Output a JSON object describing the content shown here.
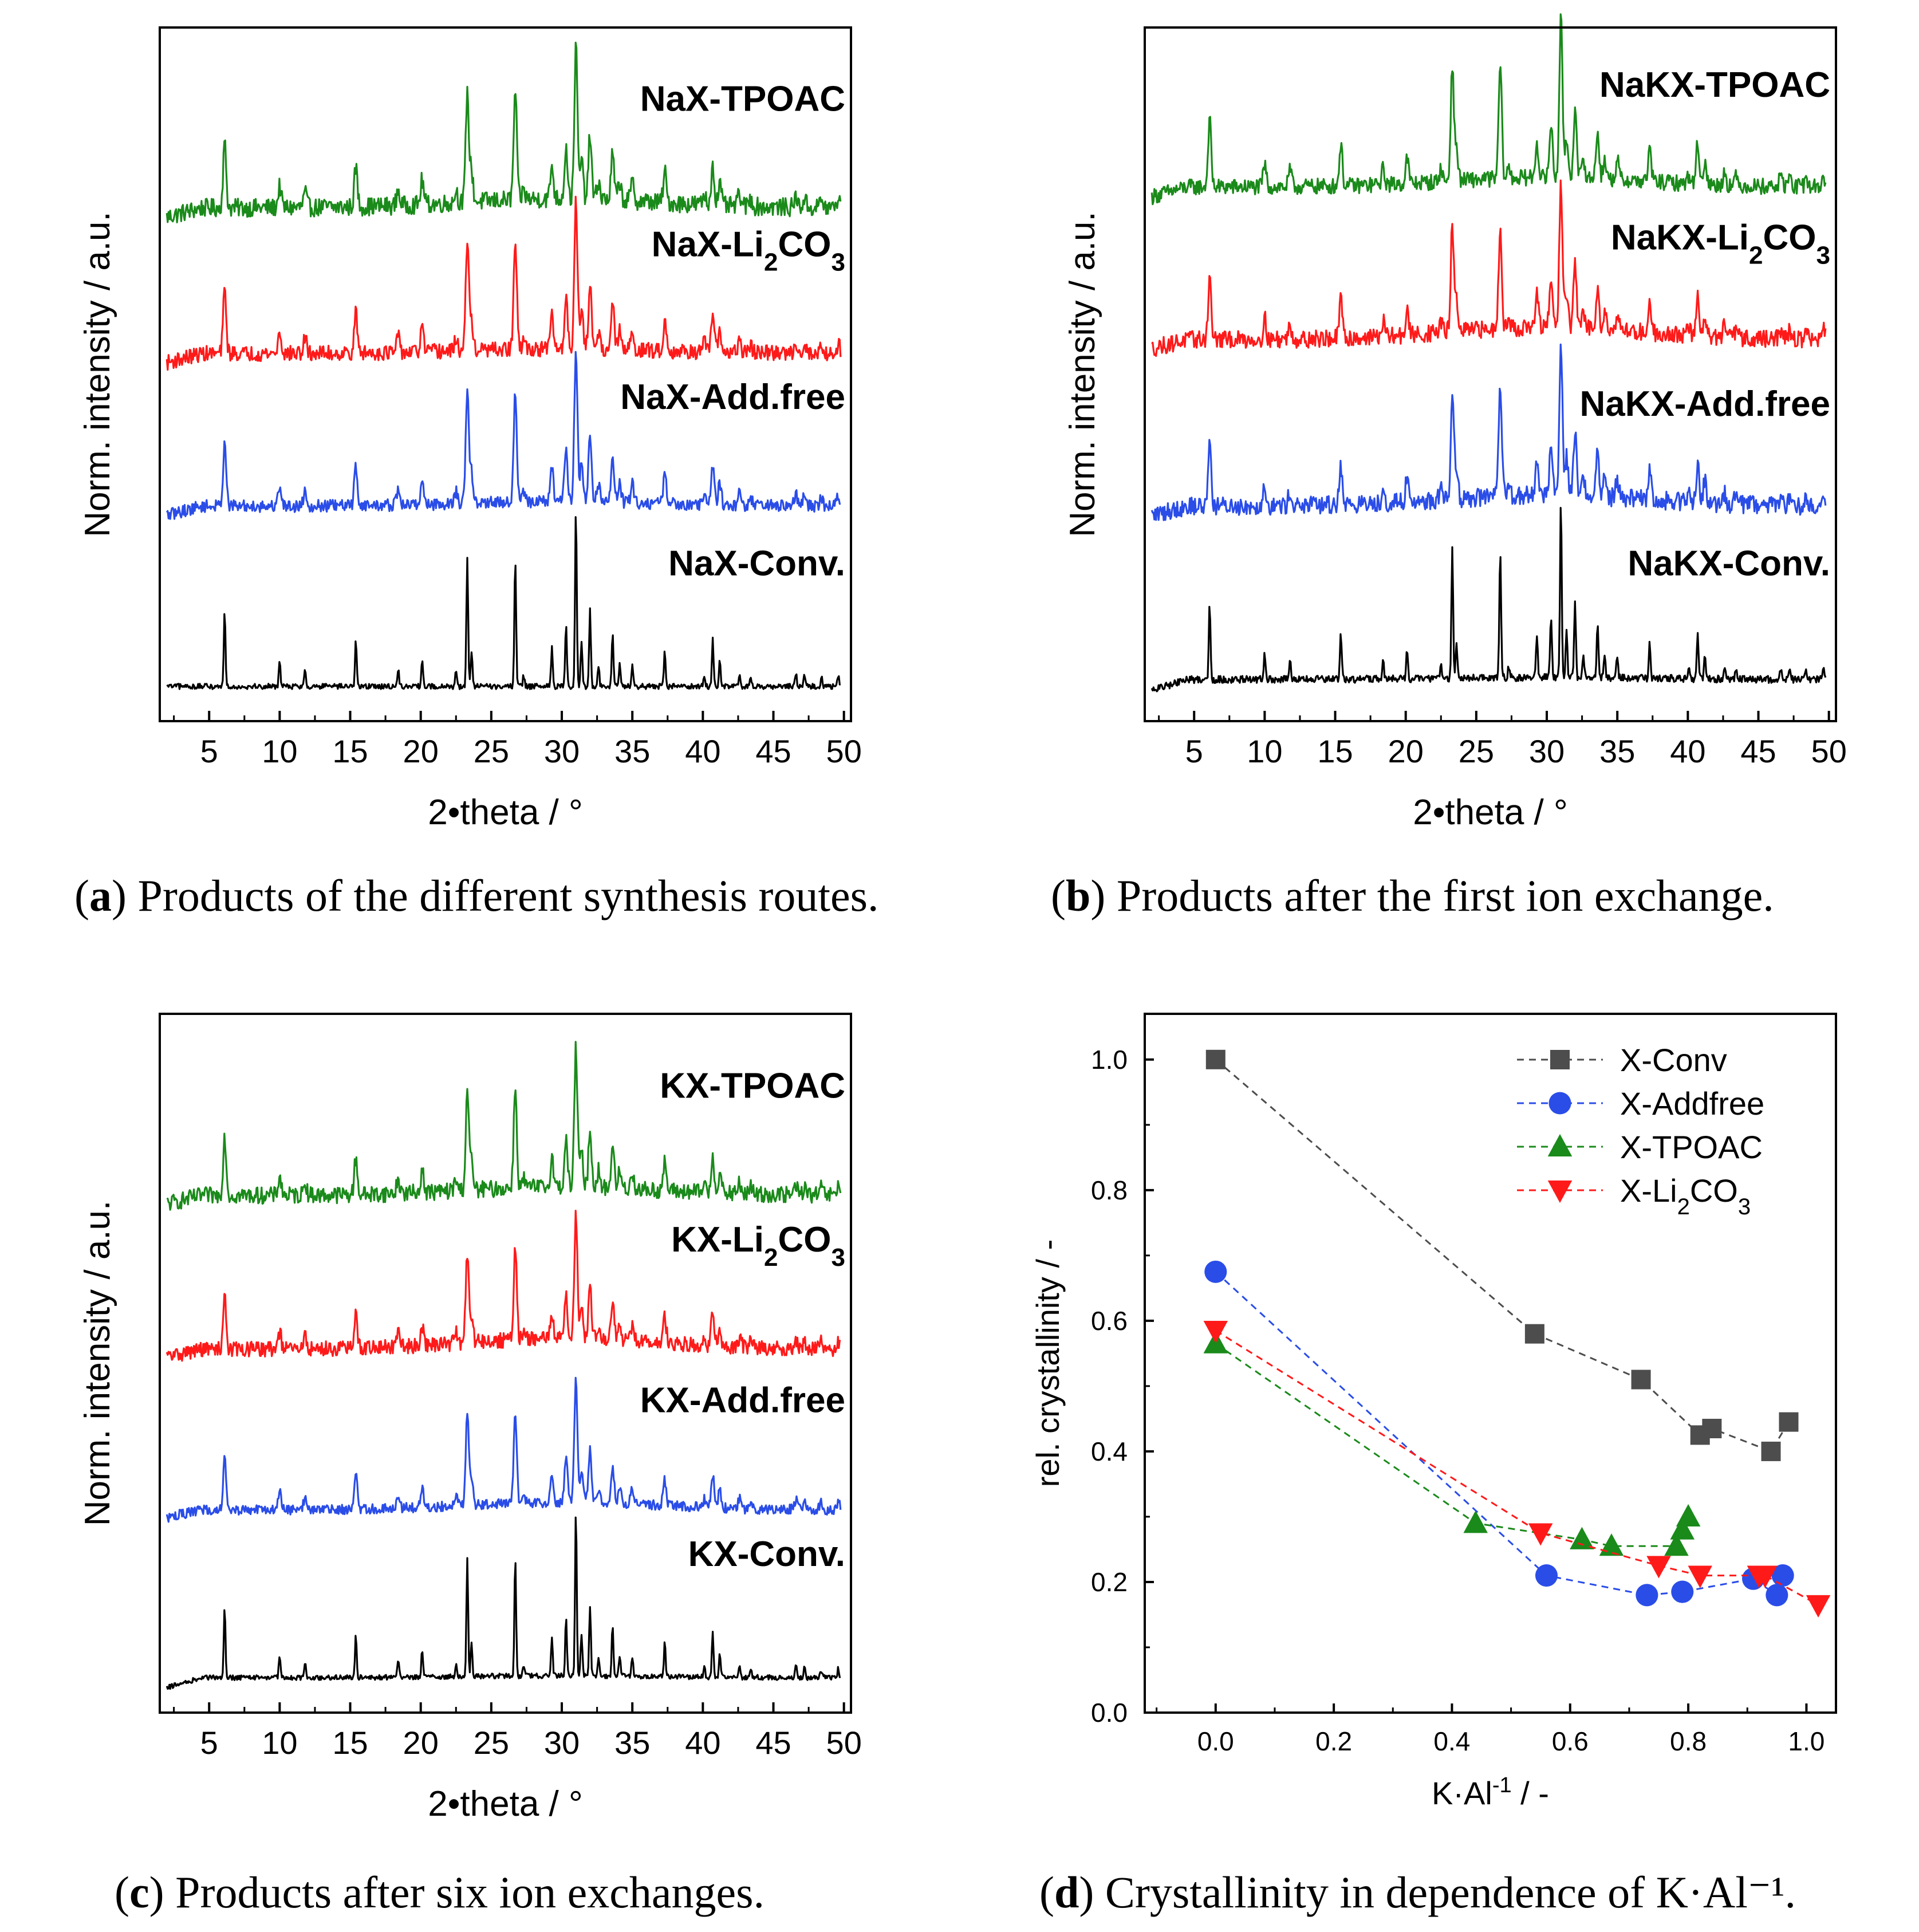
{
  "figure": {
    "captions": [
      {
        "letter": "a",
        "text": "Products of the different synthesis routes."
      },
      {
        "letter": "b",
        "text": "Products after the first ion exchange."
      },
      {
        "letter": "c",
        "text": "Products after six ion exchanges."
      },
      {
        "letter": "d",
        "text": "Crystallinity in dependence of K·Al⁻¹."
      }
    ]
  },
  "chart_data": [
    {
      "id": "a",
      "type": "line",
      "xlabel": "2•theta / °",
      "ylabel": "Norm. intensity / a.u.",
      "xlim": [
        1.5,
        50.5
      ],
      "xticks": [
        5,
        10,
        15,
        20,
        25,
        30,
        35,
        40,
        45,
        50
      ],
      "ylim": [
        0,
        1
      ],
      "series": [
        {
          "name": "NaX-TPOAC",
          "label": "NaX-TPOAC",
          "color": "#1a8a1a",
          "baseline": 0.74,
          "scale": 0.22,
          "noise": 0.12,
          "hump": 0.1,
          "sub": ""
        },
        {
          "name": "NaX-Li2CO3",
          "label": "NaX-Li",
          "sub": "2",
          "label2": "CO",
          "sub2": "3",
          "color": "#ff1a1a",
          "baseline": 0.53,
          "scale": 0.22,
          "noise": 0.1,
          "hump": 0.05
        },
        {
          "name": "NaX-Add.free",
          "label": "NaX-Add.free",
          "color": "#2a4de8",
          "baseline": 0.31,
          "scale": 0.22,
          "noise": 0.08,
          "hump": 0.05,
          "sub": ""
        },
        {
          "name": "NaX-Conv.",
          "label": "NaX-Conv.",
          "color": "#000000",
          "baseline": 0.05,
          "scale": 0.26,
          "noise": 0.03,
          "hump": 0.0,
          "sub": ""
        }
      ]
    },
    {
      "id": "b",
      "type": "line",
      "xlabel": "2•theta / °",
      "ylabel": "Norm. intensity / a.u.",
      "xlim": [
        1.5,
        50.5
      ],
      "xticks": [
        5,
        10,
        15,
        20,
        25,
        30,
        35,
        40,
        45,
        50
      ],
      "ylim": [
        0,
        1
      ],
      "series": [
        {
          "name": "NaKX-TPOAC",
          "label": "NaKX-TPOAC",
          "color": "#1a8a1a",
          "baseline": 0.77,
          "scale": 0.23,
          "noise": 0.1,
          "hump": 0.1,
          "sub": ""
        },
        {
          "name": "NaKX-Li2CO3",
          "label": "NaKX-Li",
          "sub": "2",
          "label2": "CO",
          "sub2": "3",
          "color": "#ff1a1a",
          "baseline": 0.55,
          "scale": 0.21,
          "noise": 0.12,
          "hump": 0.14
        },
        {
          "name": "NaKX-Add.free",
          "label": "NaKX-Add.free",
          "color": "#2a4de8",
          "baseline": 0.31,
          "scale": 0.22,
          "noise": 0.12,
          "hump": 0.12,
          "sub": ""
        },
        {
          "name": "NaKX-Conv.",
          "label": "NaKX-Conv.",
          "color": "#000000",
          "baseline": 0.06,
          "scale": 0.26,
          "noise": 0.04,
          "hump": 0.02,
          "sub": ""
        }
      ]
    },
    {
      "id": "c",
      "type": "line",
      "xlabel": "2•theta / °",
      "ylabel": "Norm. intensity / a.u.",
      "xlim": [
        1.5,
        50.5
      ],
      "xticks": [
        5,
        10,
        15,
        20,
        25,
        30,
        35,
        40,
        45,
        50
      ],
      "ylim": [
        0,
        1
      ],
      "series": [
        {
          "name": "KX-TPOAC",
          "label": "KX-TPOAC",
          "color": "#1a8a1a",
          "baseline": 0.74,
          "scale": 0.2,
          "noise": 0.12,
          "hump": 0.1,
          "sub": ""
        },
        {
          "name": "KX-Li2CO3",
          "label": "KX-Li",
          "sub": "2",
          "label2": "CO",
          "sub2": "3",
          "color": "#ff1a1a",
          "baseline": 0.52,
          "scale": 0.18,
          "noise": 0.12,
          "hump": 0.14
        },
        {
          "name": "KX-Add.free",
          "label": "KX-Add.free",
          "color": "#2a4de8",
          "baseline": 0.29,
          "scale": 0.18,
          "noise": 0.08,
          "hump": 0.1,
          "sub": ""
        },
        {
          "name": "KX-Conv.",
          "label": "KX-Conv.",
          "color": "#000000",
          "baseline": 0.05,
          "scale": 0.24,
          "noise": 0.03,
          "hump": 0.02,
          "sub": ""
        }
      ]
    },
    {
      "id": "d",
      "type": "scatter",
      "xlabel": "K·Al",
      "xlabel_sup": "-1",
      "xlabel_tail": " / -",
      "ylabel": "rel. crystallinity / -",
      "xlim": [
        -0.12,
        1.05
      ],
      "ylim": [
        0.0,
        1.07
      ],
      "xticks": [
        0.0,
        0.2,
        0.4,
        0.6,
        0.8,
        1.0
      ],
      "yticks": [
        0.0,
        0.2,
        0.4,
        0.6,
        0.8,
        1.0
      ],
      "legend_position": "top-right",
      "series": [
        {
          "name": "X-Conv",
          "label": "X-Conv",
          "sub": "",
          "label2": "",
          "marker": "square",
          "color": "#4d4d4d",
          "x": [
            0.0,
            0.54,
            0.72,
            0.82,
            0.84,
            0.94,
            0.97
          ],
          "y": [
            1.0,
            0.58,
            0.51,
            0.425,
            0.435,
            0.4,
            0.445
          ]
        },
        {
          "name": "X-Addfree",
          "label": "X-Addfree",
          "sub": "",
          "label2": "",
          "marker": "circle",
          "color": "#2a4de8",
          "x": [
            0.0,
            0.56,
            0.73,
            0.79,
            0.91,
            0.95,
            0.96
          ],
          "y": [
            0.675,
            0.21,
            0.18,
            0.185,
            0.205,
            0.18,
            0.21
          ]
        },
        {
          "name": "X-TPOAC",
          "label": "X-TPOAC",
          "sub": "",
          "label2": "",
          "marker": "triangle-up",
          "color": "#1a8a1a",
          "x": [
            0.0,
            0.44,
            0.62,
            0.67,
            0.78,
            0.79,
            0.8
          ],
          "y": [
            0.565,
            0.29,
            0.265,
            0.255,
            0.255,
            0.28,
            0.3
          ]
        },
        {
          "name": "X-Li2CO3",
          "label": "X-Li",
          "sub": "2",
          "label2": "CO",
          "sub2": "3",
          "marker": "triangle-down",
          "color": "#ff1a1a",
          "x": [
            0.0,
            0.55,
            0.75,
            0.82,
            0.92,
            0.93,
            1.02
          ],
          "y": [
            0.585,
            0.275,
            0.225,
            0.21,
            0.21,
            0.21,
            0.165
          ]
        }
      ]
    }
  ]
}
